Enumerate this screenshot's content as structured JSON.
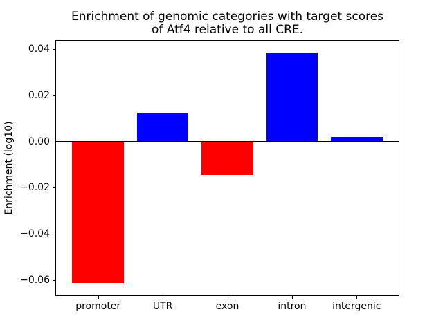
{
  "figure": {
    "title": "Enrichment of genomic categories with target scores\nof Atf4 relative to all CRE.",
    "ylabel": "Enrichment (log10)"
  },
  "chart_data": {
    "type": "bar",
    "title": "Enrichment of genomic categories with target scores of Atf4 relative to all CRE.",
    "xlabel": "",
    "ylabel": "Enrichment (log10)",
    "categories": [
      "promoter",
      "UTR",
      "exon",
      "intron",
      "intergenic"
    ],
    "values": [
      -0.061,
      0.0125,
      -0.0145,
      0.0385,
      0.002
    ],
    "bar_colors": [
      "#ff0000",
      "#0000ff",
      "#ff0000",
      "#0000ff",
      "#0000ff"
    ],
    "positive_color": "#0000ff",
    "negative_color": "#ff0000",
    "yticks": [
      0.04,
      0.02,
      0.0,
      -0.02,
      -0.04,
      -0.06
    ],
    "ylim": [
      -0.0665,
      0.0435
    ],
    "xlim_units": [
      -0.65,
      4.65
    ],
    "bar_width_units": 0.8,
    "zero_line": true,
    "grid": false,
    "legend_position": "none",
    "spine_color": "#000000",
    "background_color": "#ffffff"
  }
}
